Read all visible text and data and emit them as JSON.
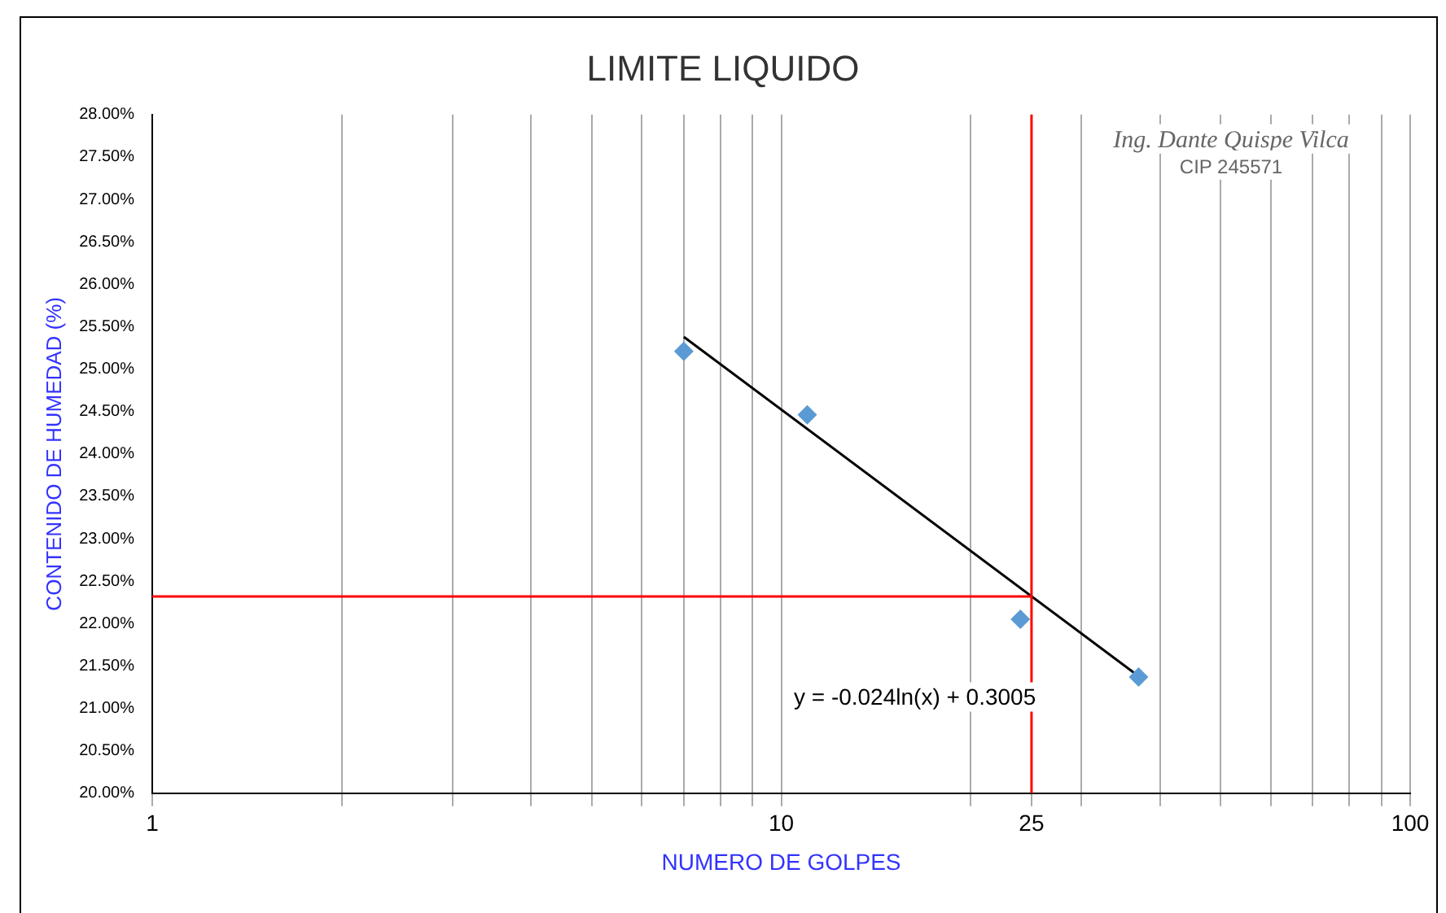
{
  "chart_data": {
    "type": "scatter",
    "title": "LIMITE LIQUIDO",
    "xlabel": "NUMERO DE GOLPES",
    "ylabel": "CONTENIDO DE HUMEDAD (%)",
    "log": "x",
    "grid": "x",
    "legend": false,
    "xlim": [
      1,
      100
    ],
    "xticks": [
      1,
      {
        "value": 2,
        "label": null
      },
      {
        "value": 3,
        "label": null
      },
      {
        "value": 4,
        "label": null
      },
      {
        "value": 5,
        "label": null
      },
      {
        "value": 6,
        "label": null
      },
      {
        "value": 7,
        "label": null
      },
      {
        "value": 8,
        "label": null
      },
      {
        "value": 9,
        "label": null
      },
      10,
      {
        "value": 20,
        "label": null
      },
      25,
      {
        "value": 30,
        "label": null
      },
      {
        "value": 40,
        "label": null
      },
      {
        "value": 50,
        "label": null
      },
      {
        "value": 60,
        "label": null
      },
      {
        "value": 70,
        "label": null
      },
      {
        "value": 80,
        "label": null
      },
      {
        "value": 90,
        "label": null
      },
      100
    ],
    "ylim": [
      20,
      28
    ],
    "yticks": [
      {
        "value": 20,
        "label": "20.00%"
      },
      {
        "value": 20.5,
        "label": "20.50%"
      },
      {
        "value": 21,
        "label": "21.00%"
      },
      {
        "value": 21.5,
        "label": "21.50%"
      },
      {
        "value": 22,
        "label": "22.00%"
      },
      {
        "value": 22.5,
        "label": "22.50%"
      },
      {
        "value": 23,
        "label": "23.00%"
      },
      {
        "value": 23.5,
        "label": "23.50%"
      },
      {
        "value": 24,
        "label": "24.00%"
      },
      {
        "value": 24.5,
        "label": "24.50%"
      },
      {
        "value": 25,
        "label": "25.00%"
      },
      {
        "value": 25.5,
        "label": "25.50%"
      },
      {
        "value": 26,
        "label": "26.00%"
      },
      {
        "value": 26.5,
        "label": "26.50%"
      },
      {
        "value": 27,
        "label": "27.00%"
      },
      {
        "value": 27.5,
        "label": "27.50%"
      },
      {
        "value": 28,
        "label": "28.00%"
      }
    ],
    "series": [
      {
        "color": "#5b9bd5",
        "marker": "diamond",
        "x": [
          7,
          11,
          24,
          37
        ],
        "values": [
          25.21,
          24.46,
          22.05,
          21.37
        ]
      },
      {
        "type": "line",
        "color": "#000000",
        "marker": "none",
        "x": [
          7,
          37
        ],
        "values": [
          25.38,
          21.38
        ]
      }
    ],
    "ref_lines": [
      {
        "axis": "x",
        "value": 25,
        "color": "#ff0000"
      },
      {
        "axis": "y",
        "value": 22.32,
        "color": "#ff0000"
      }
    ],
    "annotations": [
      "y = -0.024ln(x) + 0.3005",
      "Ing. Dante Quispe Vilca",
      "CIP 245571"
    ]
  }
}
